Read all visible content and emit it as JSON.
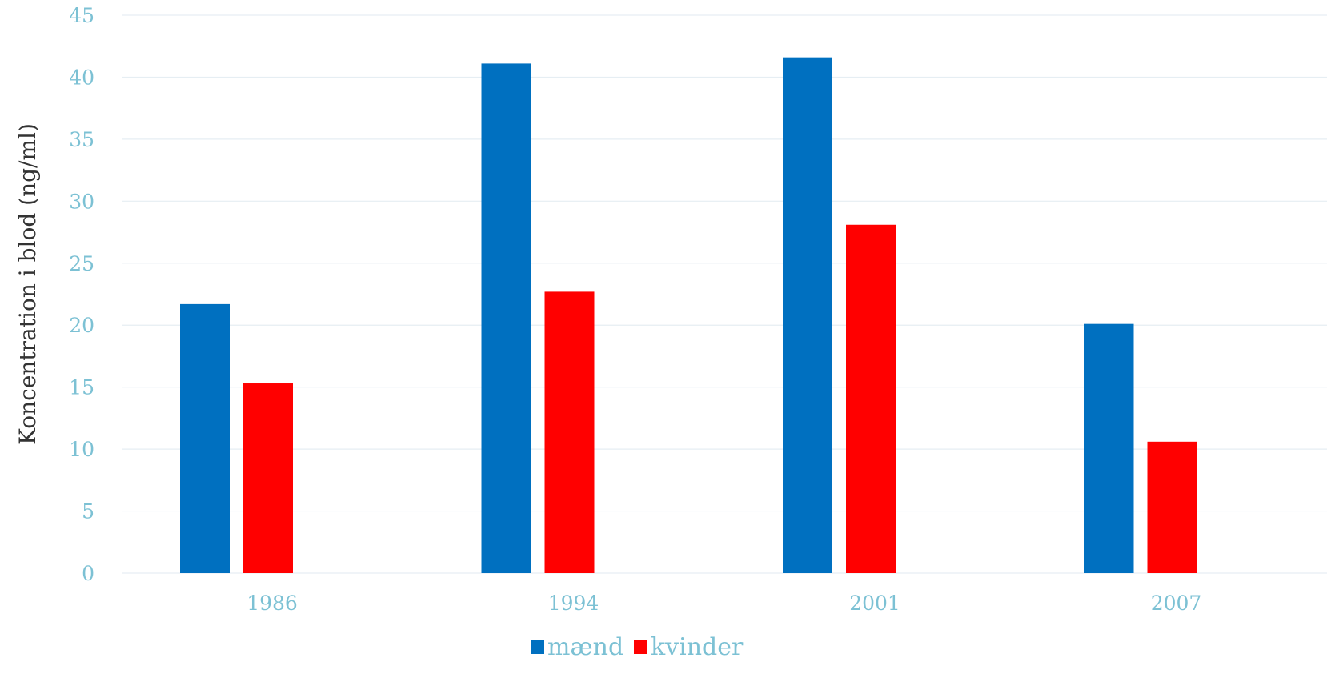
{
  "chart_data": {
    "type": "bar",
    "categories": [
      "1986",
      "1994",
      "2001",
      "2007"
    ],
    "series": [
      {
        "name": "mænd",
        "values": [
          21.7,
          41.1,
          41.6,
          20.1
        ],
        "color": "#0070c0"
      },
      {
        "name": "kvinder",
        "values": [
          15.3,
          22.7,
          28.1,
          10.6
        ],
        "color": "#ff0000"
      }
    ],
    "title": "",
    "xlabel": "",
    "ylabel": "Koncentration i blod (ng/ml)",
    "ylim": [
      0,
      45
    ],
    "yticks": [
      0,
      5,
      10,
      15,
      20,
      25,
      30,
      35,
      40,
      45
    ],
    "grid": true,
    "legend": "bottom-center",
    "colors": {
      "tick_text": "#7cc1d4",
      "grid": "#e6eef3",
      "axis_title": "#333333"
    }
  }
}
